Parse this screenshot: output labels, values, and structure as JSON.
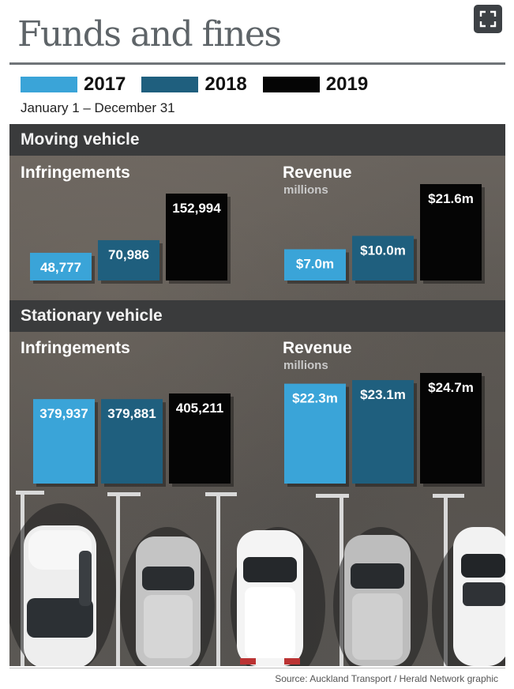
{
  "title": "Funds and fines",
  "date_range": "January 1 – December 31",
  "source": "Source: Auckland Transport / Herald Network graphic",
  "colors": {
    "2017": "#3aa4d8",
    "2018": "#1f5f7e",
    "2019": "#050505"
  },
  "legend": [
    {
      "label": "2017",
      "color": "#3aa4d8"
    },
    {
      "label": "2018",
      "color": "#1f5f7e"
    },
    {
      "label": "2019",
      "color": "#050505"
    }
  ],
  "sections": [
    {
      "title": "Moving vehicle"
    },
    {
      "title": "Stationary vehicle"
    }
  ],
  "panels": [
    {
      "heading": "Infringements",
      "sub": ""
    },
    {
      "heading": "Revenue",
      "sub": "millions"
    },
    {
      "heading": "Infringements",
      "sub": ""
    },
    {
      "heading": "Revenue",
      "sub": "millions"
    }
  ],
  "chart_data": [
    {
      "type": "bar",
      "title": "Moving vehicle – Infringements",
      "categories": [
        "2017",
        "2018",
        "2019"
      ],
      "values": [
        48777,
        70986,
        152994
      ],
      "labels": [
        "48,777",
        "70,986",
        "152,994"
      ]
    },
    {
      "type": "bar",
      "title": "Moving vehicle – Revenue",
      "unit": "millions",
      "categories": [
        "2017",
        "2018",
        "2019"
      ],
      "values": [
        7.0,
        10.0,
        21.6
      ],
      "labels": [
        "$7.0m",
        "$10.0m",
        "$21.6m"
      ]
    },
    {
      "type": "bar",
      "title": "Stationary vehicle – Infringements",
      "categories": [
        "2017",
        "2018",
        "2019"
      ],
      "values": [
        379937,
        379881,
        405211
      ],
      "labels": [
        "379,937",
        "379,881",
        "405,211"
      ]
    },
    {
      "type": "bar",
      "title": "Stationary vehicle – Revenue",
      "unit": "millions",
      "categories": [
        "2017",
        "2018",
        "2019"
      ],
      "values": [
        22.3,
        23.1,
        24.7
      ],
      "labels": [
        "$22.3m",
        "$23.1m",
        "$24.7m"
      ]
    }
  ]
}
